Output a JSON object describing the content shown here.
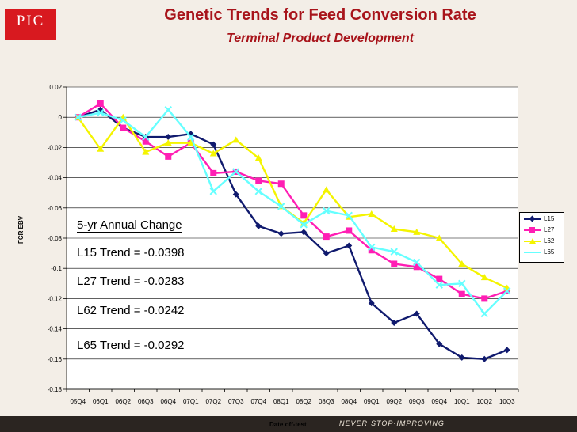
{
  "header": {
    "logo_text": "PIC",
    "title": "Genetic Trends for Feed Conversion Rate",
    "subtitle": "Terminal Product Development"
  },
  "footer": {
    "slogan": "NEVER·STOP·IMPROVING"
  },
  "annotations": {
    "heading": "5-yr Annual Change",
    "trends": [
      "L15 Trend = -0.0398",
      "L27 Trend = -0.0283",
      "L62 Trend = -0.0242",
      "L65 Trend = -0.0292"
    ]
  },
  "chart_data": {
    "type": "line",
    "xlabel": "Date off-test",
    "ylabel": "FCR EBV",
    "ylim": [
      -0.18,
      0.02
    ],
    "yticks": [
      "0.02",
      "0",
      "-0.02",
      "-0.04",
      "-0.06",
      "-0.08",
      "-0.1",
      "-0.12",
      "-0.14",
      "-0.16",
      "-0.18"
    ],
    "categories": [
      "05Q4",
      "06Q1",
      "06Q2",
      "06Q3",
      "06Q4",
      "07Q1",
      "07Q2",
      "07Q3",
      "07Q4",
      "08Q1",
      "08Q2",
      "08Q3",
      "08Q4",
      "09Q1",
      "09Q2",
      "09Q3",
      "09Q4",
      "10Q1",
      "10Q2",
      "10Q3"
    ],
    "legend_position": "right",
    "series": [
      {
        "name": "L15",
        "color": "#101a6e",
        "marker": "diamond",
        "values": [
          0,
          0.005,
          -0.007,
          -0.013,
          -0.013,
          -0.011,
          -0.018,
          -0.051,
          -0.072,
          -0.077,
          -0.076,
          -0.09,
          -0.085,
          -0.123,
          -0.136,
          -0.13,
          -0.15,
          -0.159,
          -0.16,
          -0.154
        ]
      },
      {
        "name": "L27",
        "color": "#ff1eb4",
        "marker": "square",
        "values": [
          0,
          0.009,
          -0.007,
          -0.016,
          -0.026,
          -0.017,
          -0.037,
          -0.036,
          -0.042,
          -0.044,
          -0.065,
          -0.079,
          -0.075,
          -0.088,
          -0.097,
          -0.099,
          -0.107,
          -0.117,
          -0.12,
          -0.115
        ]
      },
      {
        "name": "L62",
        "color": "#f4f400",
        "marker": "triangle",
        "values": [
          0,
          -0.021,
          0,
          -0.023,
          -0.017,
          -0.017,
          -0.024,
          -0.015,
          -0.027,
          -0.059,
          -0.07,
          -0.048,
          -0.066,
          -0.064,
          -0.074,
          -0.076,
          -0.08,
          -0.097,
          -0.106,
          -0.113
        ]
      },
      {
        "name": "L65",
        "color": "#66ffff",
        "marker": "x",
        "values": [
          0,
          0.003,
          -0.002,
          -0.013,
          0.005,
          -0.013,
          -0.049,
          -0.036,
          -0.049,
          -0.059,
          -0.071,
          -0.062,
          -0.065,
          -0.086,
          -0.089,
          -0.096,
          -0.111,
          -0.11,
          -0.13,
          -0.115
        ]
      }
    ]
  }
}
